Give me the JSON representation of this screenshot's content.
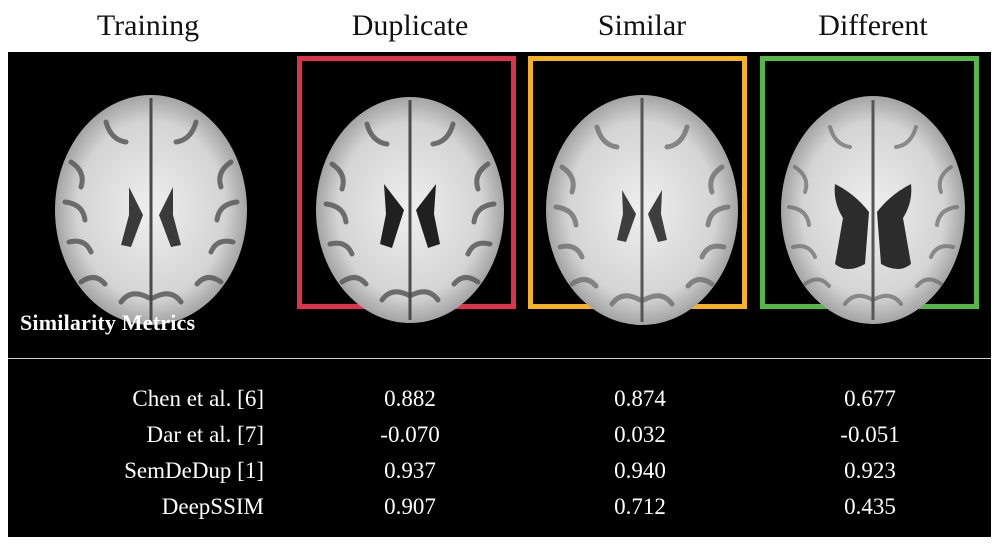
{
  "columns": {
    "training": "Training",
    "duplicate": "Duplicate",
    "similar": "Similar",
    "different": "Different"
  },
  "colors": {
    "duplicate_frame": "#e0314b",
    "similar_frame": "#f6b21f",
    "different_frame": "#55b747",
    "panel_background": "#000000"
  },
  "section_label": "Similarity Metrics",
  "metrics": [
    {
      "name": "Chen et al. [6]",
      "duplicate": "0.882",
      "similar": "0.874",
      "different": "0.677"
    },
    {
      "name": "Dar et al. [7]",
      "duplicate": "-0.070",
      "similar": "0.032",
      "different": "-0.051"
    },
    {
      "name": "SemDeDup [1]",
      "duplicate": "0.937",
      "similar": "0.940",
      "different": "0.923"
    },
    {
      "name": "DeepSSIM",
      "duplicate": "0.907",
      "similar": "0.712",
      "different": "0.435"
    }
  ]
}
